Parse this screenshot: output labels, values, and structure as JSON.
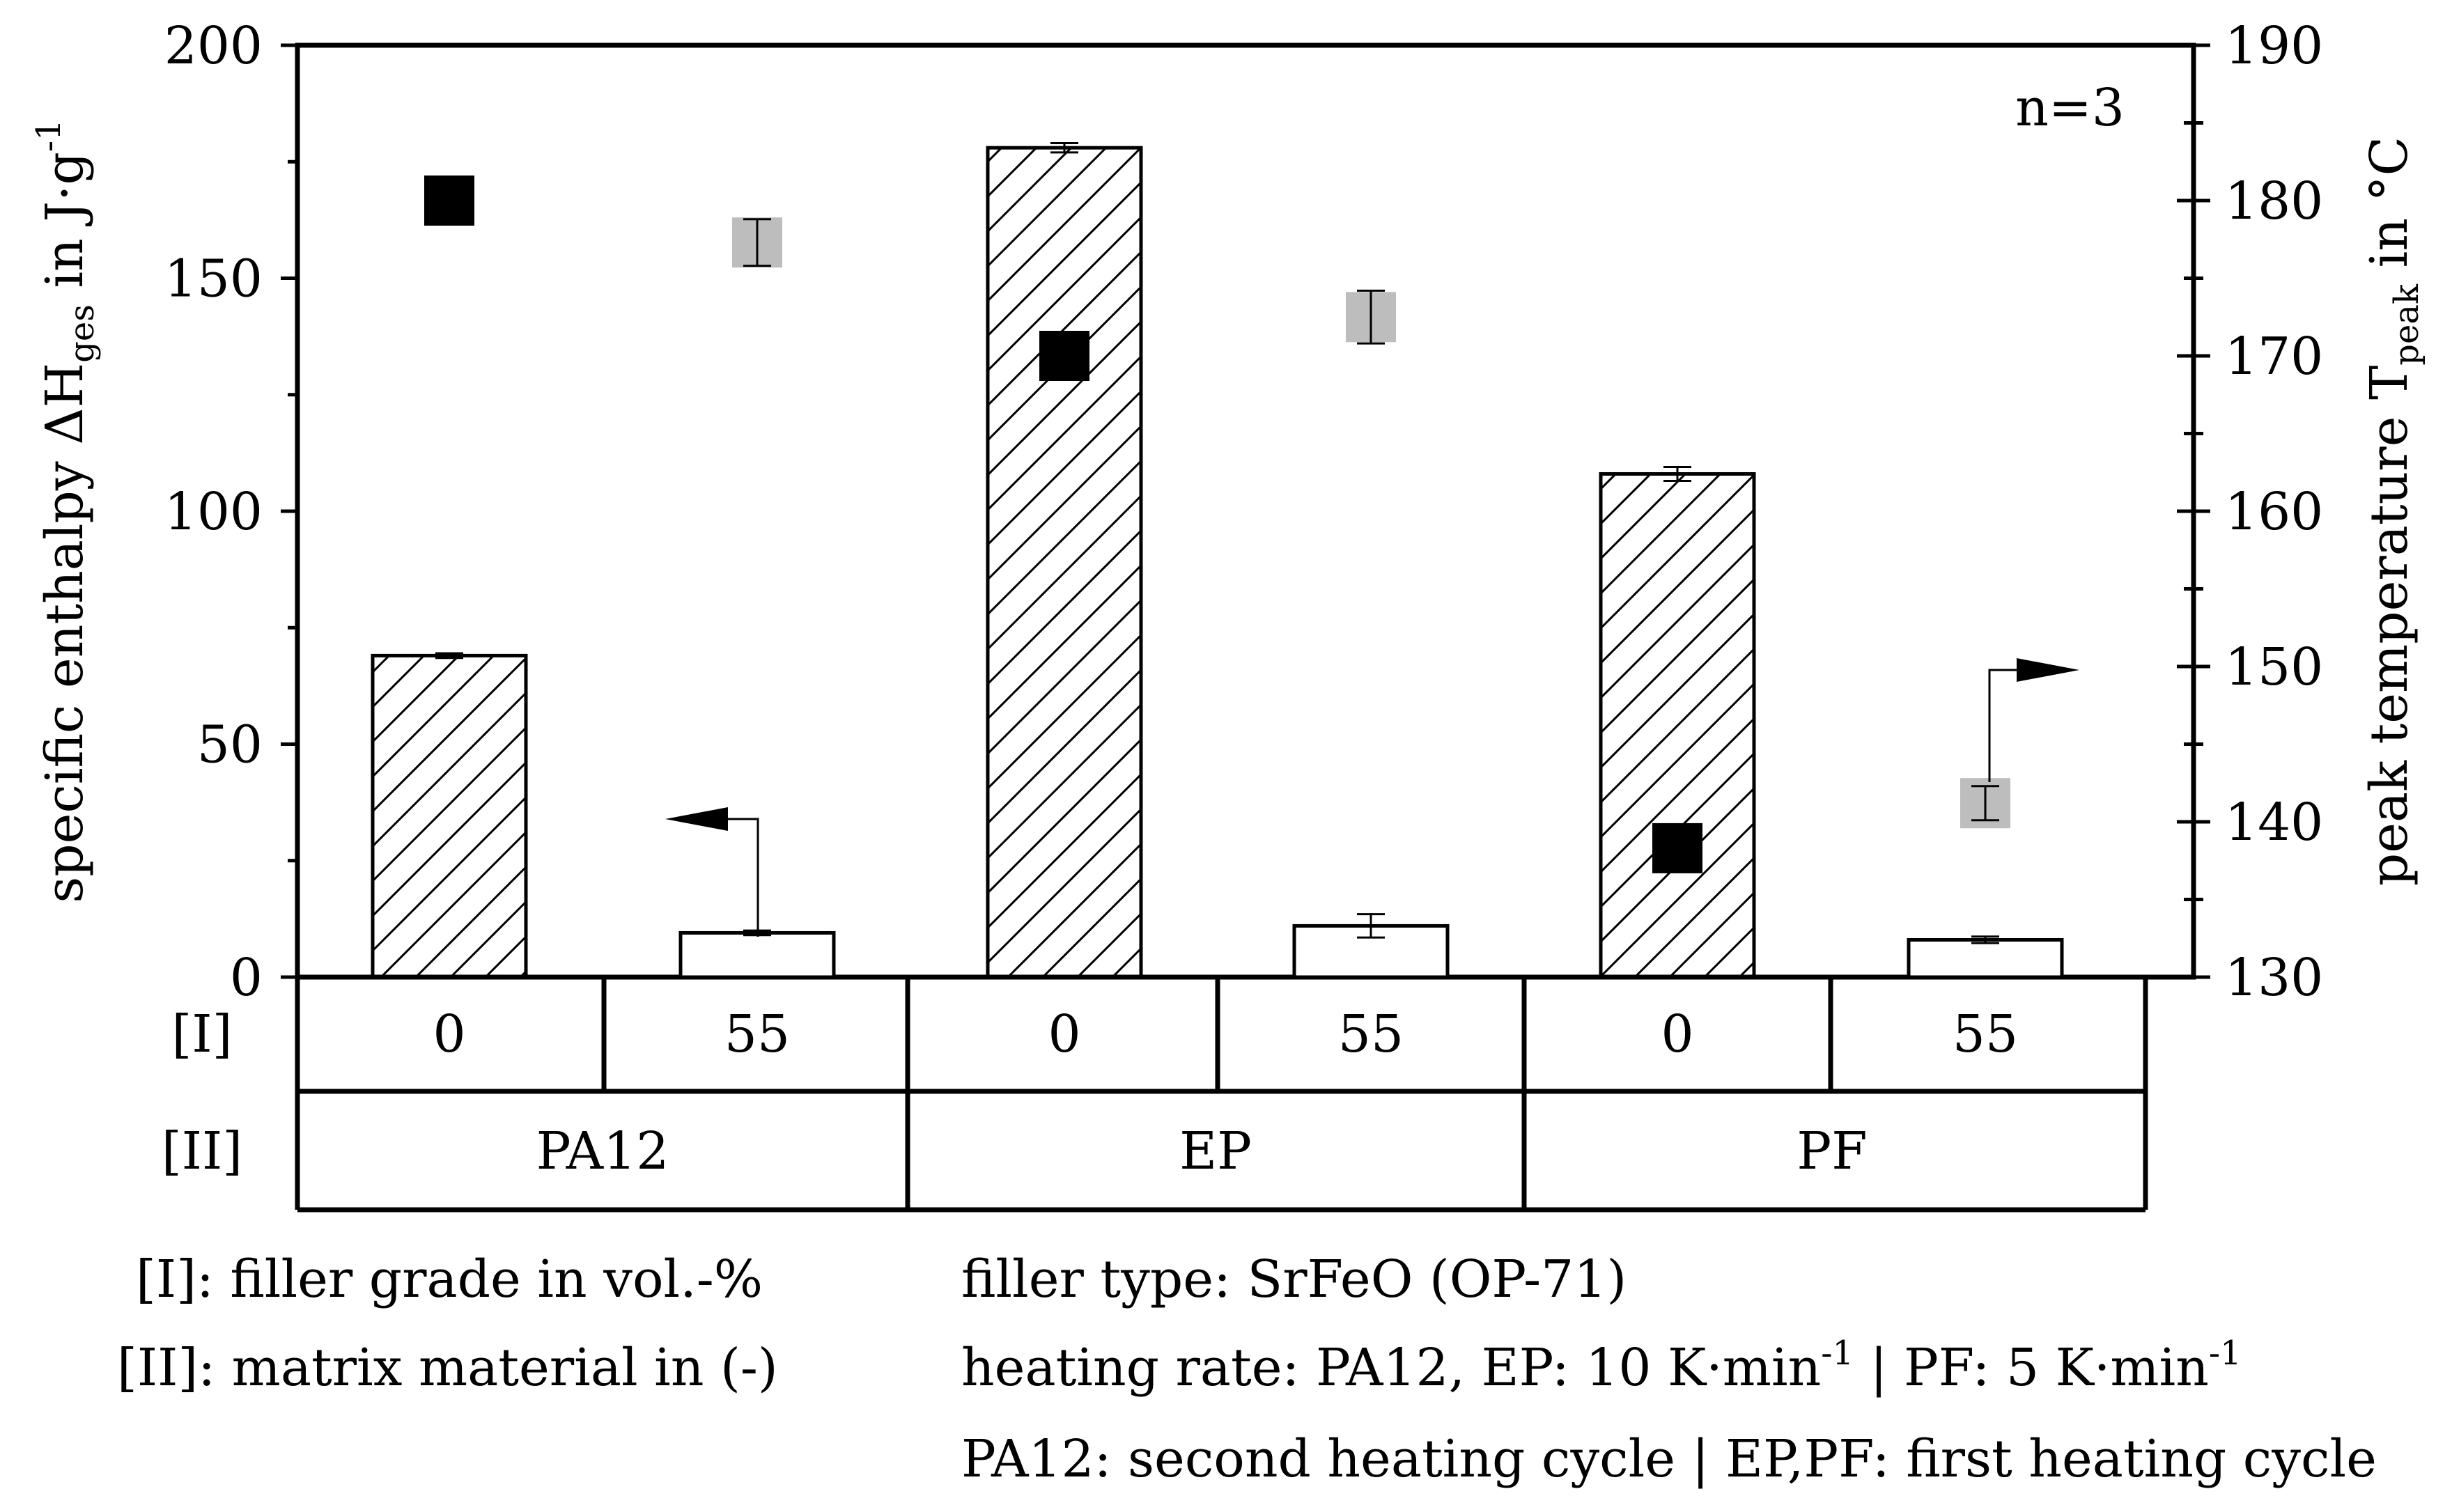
{
  "chart_data": {
    "type": "bar",
    "annotation": "n=3",
    "left_axis": {
      "label_main": "specific enthalpy ΔH",
      "label_sub": "ges",
      "label_unit": " in J·g",
      "label_sup": "-1",
      "range": [
        0,
        200
      ],
      "ticks": [
        "0",
        "50",
        "100",
        "150",
        "200"
      ]
    },
    "right_axis": {
      "label_main": "peak temperature T",
      "label_sub": "peak",
      "label_unit": " in °C",
      "range": [
        130,
        190
      ],
      "ticks": [
        "130",
        "140",
        "150",
        "160",
        "170",
        "180",
        "190"
      ]
    },
    "row_labels": {
      "filler": "[I]",
      "matrix": "[II]"
    },
    "categories": [
      {
        "filler": "0",
        "enthalpy": 69,
        "enthalpy_err": 0.5,
        "pattern": "hatched",
        "peak_temp": 180.0,
        "peak_err": 0,
        "marker": "black"
      },
      {
        "filler": "55",
        "enthalpy": 9.5,
        "enthalpy_err": 0.5,
        "pattern": "open",
        "peak_temp": 177.3,
        "peak_err": 1.5,
        "marker": "gray"
      },
      {
        "filler": "0",
        "enthalpy": 178,
        "enthalpy_err": 1,
        "pattern": "hatched",
        "peak_temp": 170.0,
        "peak_err": 0,
        "marker": "black"
      },
      {
        "filler": "55",
        "enthalpy": 11,
        "enthalpy_err": 2.5,
        "pattern": "open",
        "peak_temp": 172.5,
        "peak_err": 1.7,
        "marker": "gray"
      },
      {
        "filler": "0",
        "enthalpy": 108,
        "enthalpy_err": 1.5,
        "pattern": "hatched",
        "peak_temp": 138.3,
        "peak_err": 0,
        "marker": "black"
      },
      {
        "filler": "55",
        "enthalpy": 8,
        "enthalpy_err": 0.7,
        "pattern": "open",
        "peak_temp": 141.2,
        "peak_err": 1.1,
        "marker": "gray"
      }
    ],
    "matrix_groups": [
      "PA12",
      "EP",
      "PF"
    ],
    "notes": {
      "filler_grade": "[I]: filler grade in vol.-%",
      "matrix_material": "[II]: matrix material in (-)",
      "filler_type": "filler type: SrFeO (OP-71)",
      "heating_rate_a": "heating rate: PA12, EP: 10 K·min",
      "heating_rate_a_sup": "-1",
      "heating_rate_b": " | PF: 5 K·min",
      "heating_rate_b_sup": "-1",
      "cycle": "PA12: second heating cycle | EP,PF: first heating cycle"
    }
  }
}
